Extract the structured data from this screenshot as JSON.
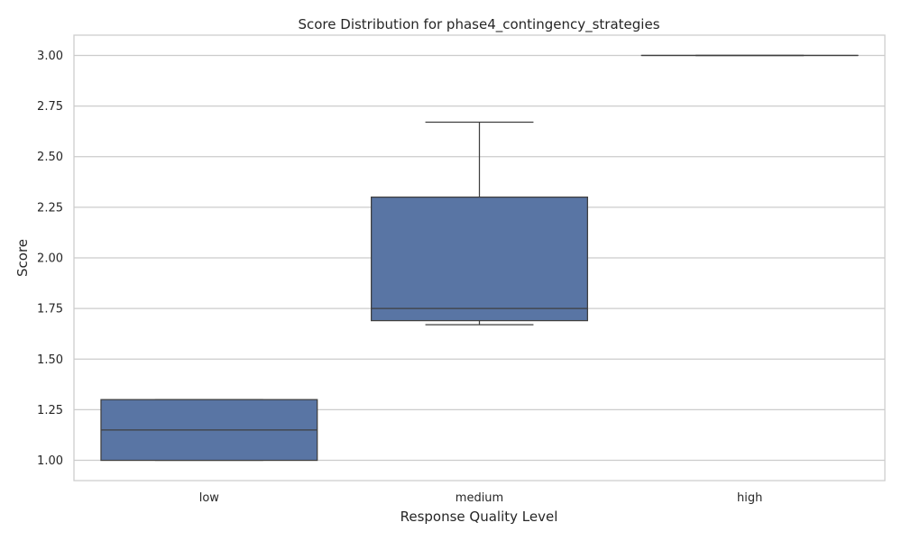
{
  "chart_data": {
    "type": "box",
    "title": "Score Distribution for phase4_contingency_strategies",
    "xlabel": "Response Quality Level",
    "ylabel": "Score",
    "ylim": [
      0.9,
      3.1
    ],
    "yticks": [
      "1.00",
      "1.25",
      "1.50",
      "1.75",
      "2.00",
      "2.25",
      "2.50",
      "2.75",
      "3.00"
    ],
    "grid": true,
    "box_color": "#5975a4",
    "line_color": "#3f3f3f",
    "categories": [
      "low",
      "medium",
      "high"
    ],
    "boxes": [
      {
        "category": "low",
        "whisker_low": 1.0,
        "q1": 1.0,
        "median": 1.15,
        "q3": 1.3,
        "whisker_high": 1.3
      },
      {
        "category": "medium",
        "whisker_low": 1.67,
        "q1": 1.69,
        "median": 1.75,
        "q3": 2.3,
        "whisker_high": 2.67
      },
      {
        "category": "high",
        "whisker_low": 3.0,
        "q1": 3.0,
        "median": 3.0,
        "q3": 3.0,
        "whisker_high": 3.0
      }
    ]
  }
}
